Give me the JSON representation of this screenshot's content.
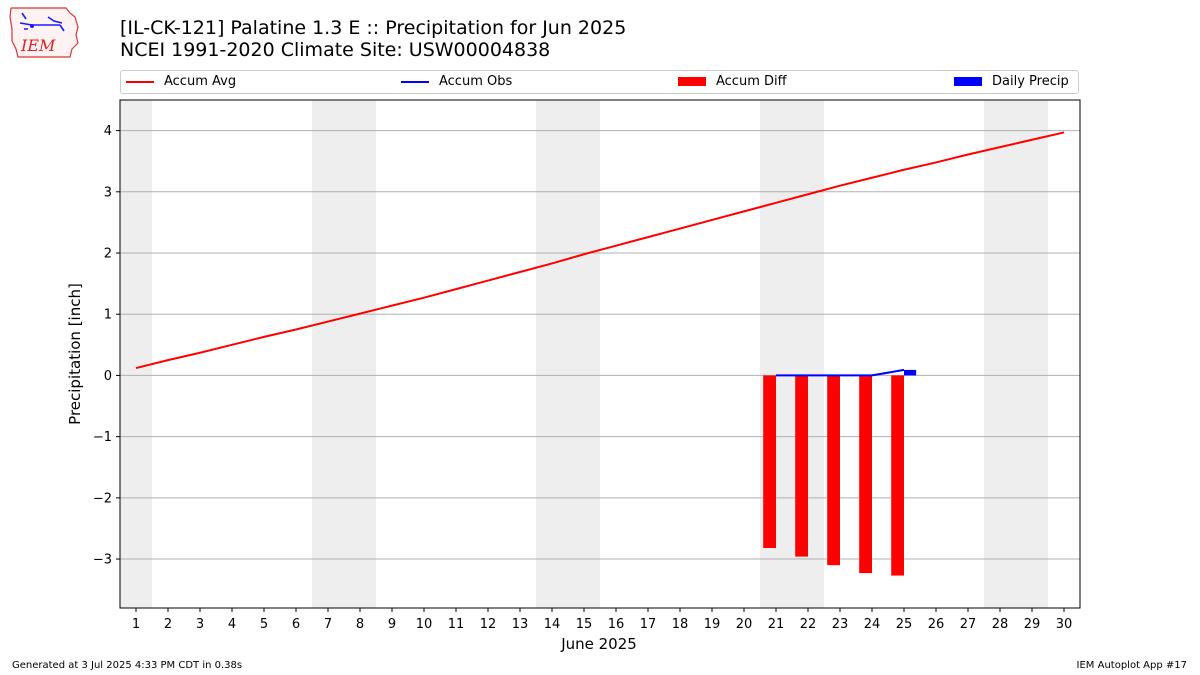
{
  "header": {
    "title_line1": "[IL-CK-121] Palatine 1.3 E :: Precipitation for Jun 2025",
    "title_line2": "NCEI 1991-2020 Climate Site: USW00004838",
    "logo_text": "IEM"
  },
  "legend": {
    "items": [
      {
        "label": "Accum Avg",
        "color": "#ff0000",
        "kind": "line"
      },
      {
        "label": "Accum Obs",
        "color": "#0000ff",
        "kind": "line"
      },
      {
        "label": "Accum Diff",
        "color": "#ff0000",
        "kind": "box"
      },
      {
        "label": "Daily Precip",
        "color": "#0000ff",
        "kind": "box"
      }
    ]
  },
  "footer": {
    "left": "Generated at 3 Jul 2025 4:33 PM CDT in 0.38s",
    "right": "IEM Autoplot App #17"
  },
  "chart_data": {
    "type": "line",
    "xlabel": "June 2025",
    "ylabel": "Precipitation [inch]",
    "xlim": [
      0.5,
      30.5
    ],
    "ylim": [
      -3.8,
      4.5
    ],
    "x_ticks": [
      1,
      2,
      3,
      4,
      5,
      6,
      7,
      8,
      9,
      10,
      11,
      12,
      13,
      14,
      15,
      16,
      17,
      18,
      19,
      20,
      21,
      22,
      23,
      24,
      25,
      26,
      27,
      28,
      29,
      30
    ],
    "y_ticks": [
      -3,
      -2,
      -1,
      0,
      1,
      2,
      3,
      4
    ],
    "y_tick_labels": [
      "−3",
      "−2",
      "−1",
      "0",
      "1",
      "2",
      "3",
      "4"
    ],
    "grid": "horizontal",
    "weekend_shading": [
      [
        0.5,
        1.5
      ],
      [
        6.5,
        8.5
      ],
      [
        13.5,
        15.5
      ],
      [
        20.5,
        22.5
      ],
      [
        27.5,
        29.5
      ]
    ],
    "shade_color": "#eeeeee",
    "series": [
      {
        "name": "Accum Avg",
        "type": "line",
        "color": "#ff0000",
        "x": [
          1,
          2,
          3,
          4,
          5,
          6,
          7,
          8,
          9,
          10,
          11,
          12,
          13,
          14,
          15,
          16,
          17,
          18,
          19,
          20,
          21,
          22,
          23,
          24,
          25,
          26,
          27,
          28,
          29,
          30
        ],
        "values": [
          0.12,
          0.25,
          0.37,
          0.5,
          0.63,
          0.75,
          0.88,
          1.01,
          1.14,
          1.27,
          1.41,
          1.55,
          1.69,
          1.83,
          1.98,
          2.12,
          2.26,
          2.4,
          2.54,
          2.68,
          2.82,
          2.96,
          3.1,
          3.23,
          3.36,
          3.48,
          3.61,
          3.73,
          3.85,
          3.97
        ]
      },
      {
        "name": "Accum Obs",
        "type": "line",
        "color": "#0000ff",
        "x": [
          21,
          22,
          23,
          24,
          25
        ],
        "values": [
          0.0,
          0.0,
          0.0,
          0.0,
          0.09
        ]
      },
      {
        "name": "Accum Diff",
        "type": "bar",
        "color": "#ff0000",
        "x": [
          21,
          22,
          23,
          24,
          25
        ],
        "values": [
          -2.82,
          -2.96,
          -3.1,
          -3.23,
          -3.27
        ]
      },
      {
        "name": "Daily Precip",
        "type": "bar",
        "color": "#0000ff",
        "x": [
          25
        ],
        "values": [
          0.09
        ]
      }
    ]
  }
}
